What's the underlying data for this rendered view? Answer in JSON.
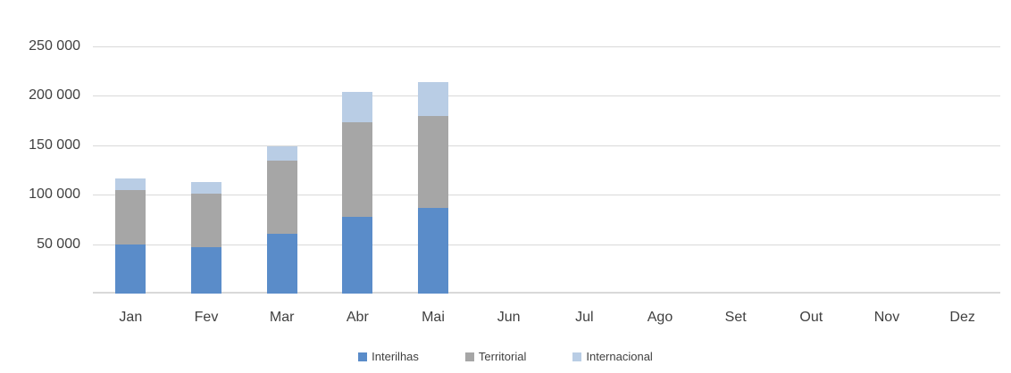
{
  "chart_data": {
    "type": "bar",
    "stacked": true,
    "title": "",
    "xlabel": "",
    "ylabel": "",
    "categories": [
      "Jan",
      "Fev",
      "Mar",
      "Abr",
      "Mai",
      "Jun",
      "Jul",
      "Ago",
      "Set",
      "Out",
      "Nov",
      "Dez"
    ],
    "series": [
      {
        "name": "Interilhas",
        "color": "#5a8cc9",
        "values": [
          49500,
          47000,
          60500,
          78000,
          86500,
          0,
          0,
          0,
          0,
          0,
          0,
          0
        ]
      },
      {
        "name": "Territorial",
        "color": "#a6a6a6",
        "values": [
          55500,
          54500,
          74000,
          95500,
          93500,
          0,
          0,
          0,
          0,
          0,
          0,
          0
        ]
      },
      {
        "name": "Internacional",
        "color": "#b9cde5",
        "values": [
          11500,
          11500,
          14500,
          30500,
          34000,
          0,
          0,
          0,
          0,
          0,
          0,
          0
        ]
      }
    ],
    "ylim": [
      0,
      250000
    ],
    "ytick_step": 50000,
    "ytick_labels": [
      "50 000",
      "100 000",
      "150 000",
      "200 000",
      "250 000"
    ],
    "grid": true,
    "legend_position": "bottom"
  },
  "style": {
    "gridline_color": "#d9d9d9",
    "axis_color": "#d9d9d9",
    "text_color": "#404040",
    "background": "#ffffff"
  }
}
